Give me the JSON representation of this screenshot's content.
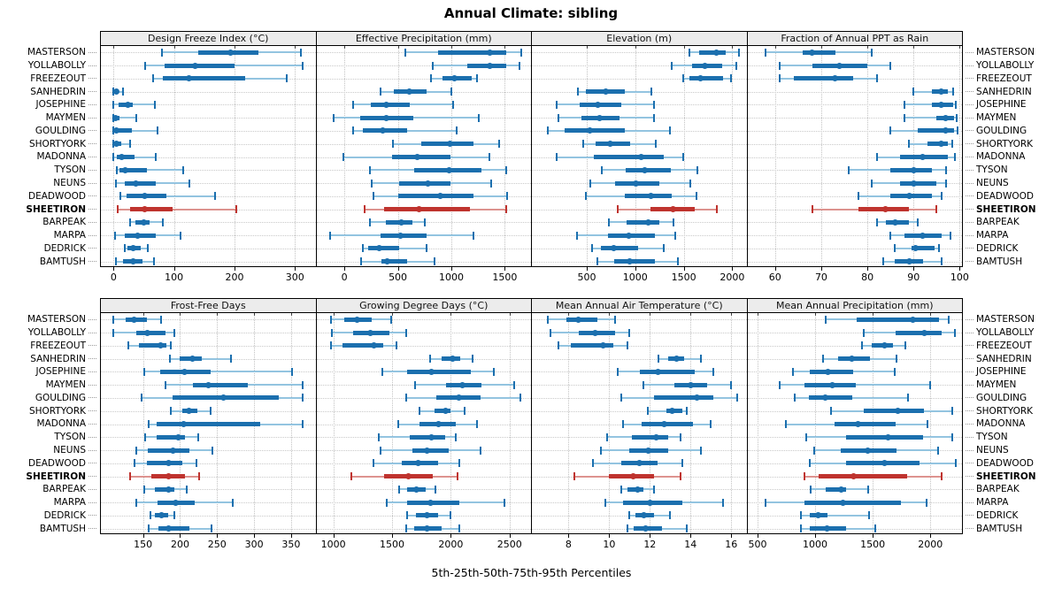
{
  "title": "Annual Climate: sibling",
  "footer": "5th-25th-50th-75th-95th Percentiles",
  "percentile_labels": [
    "5th",
    "25th",
    "50th",
    "75th",
    "95th"
  ],
  "sites": [
    "MASTERSON",
    "YOLLABOLLY",
    "FREEZEOUT",
    "SANHEDRIN",
    "JOSEPHINE",
    "MAYMEN",
    "GOULDING",
    "SHORTYORK",
    "MADONNA",
    "TYSON",
    "NEUNS",
    "DEADWOOD",
    "SHEETIRON",
    "BARPEAK",
    "MARPA",
    "DEDRICK",
    "BAMTUSH"
  ],
  "highlight_site": "SHEETIRON",
  "colors": {
    "blue_main": "#1b6fae",
    "blue_light": "#93c4e0",
    "red_main": "#bf332e",
    "red_light": "#dd938f",
    "header_bg": "#ececec",
    "grid": "#c8c8c8",
    "border": "#000000"
  },
  "chart_data": {
    "type": "dotplot-percentile-intervals",
    "layout": "2 rows x 4 columns of panels, shared site axis",
    "panels": [
      {
        "title": "Design Freeze Index (°C)",
        "ticks": [
          0,
          100,
          200,
          300
        ],
        "range": [
          -21,
          334
        ],
        "values": [
          [
            80,
            140,
            193,
            240,
            310
          ],
          [
            52,
            85,
            135,
            200,
            313
          ],
          [
            65,
            82,
            124,
            217,
            286
          ],
          [
            0,
            1,
            4,
            9,
            15
          ],
          [
            0,
            8,
            24,
            32,
            68
          ],
          [
            0,
            0,
            3,
            10,
            38
          ],
          [
            0,
            1,
            5,
            30,
            72
          ],
          [
            0,
            2,
            5,
            12,
            28
          ],
          [
            0,
            5,
            14,
            35,
            70
          ],
          [
            6,
            10,
            19,
            55,
            115
          ],
          [
            4,
            19,
            37,
            70,
            126
          ],
          [
            11,
            21,
            51,
            87,
            168
          ],
          [
            7,
            27,
            52,
            98,
            203
          ],
          [
            27,
            36,
            50,
            60,
            82
          ],
          [
            2,
            19,
            40,
            70,
            111
          ],
          [
            19,
            23,
            33,
            45,
            57
          ],
          [
            4,
            16,
            33,
            48,
            67
          ]
        ]
      },
      {
        "title": "Effective Precipitation (mm)",
        "ticks": [
          0,
          500,
          1000,
          1500
        ],
        "range": [
          -262,
          1745
        ],
        "values": [
          [
            570,
            880,
            1360,
            1510,
            1650
          ],
          [
            830,
            1150,
            1360,
            1510,
            1640
          ],
          [
            810,
            915,
            1025,
            1190,
            1240
          ],
          [
            335,
            465,
            610,
            765,
            1000
          ],
          [
            85,
            245,
            395,
            615,
            1015
          ],
          [
            -100,
            145,
            395,
            645,
            1255
          ],
          [
            80,
            175,
            355,
            585,
            1050
          ],
          [
            450,
            715,
            985,
            1205,
            1450
          ],
          [
            -10,
            445,
            680,
            990,
            1355
          ],
          [
            235,
            650,
            980,
            1280,
            1510
          ],
          [
            255,
            515,
            780,
            990,
            1370
          ],
          [
            275,
            500,
            900,
            1205,
            1525
          ],
          [
            190,
            370,
            700,
            1170,
            1510
          ],
          [
            240,
            385,
            535,
            640,
            750
          ],
          [
            -135,
            335,
            525,
            765,
            1205
          ],
          [
            175,
            220,
            325,
            510,
            765
          ],
          [
            160,
            345,
            400,
            585,
            845
          ]
        ]
      },
      {
        "title": "Elevation (m)",
        "ticks": [
          500,
          1000,
          1500,
          2000
        ],
        "range": [
          -66,
          2147
        ],
        "values": [
          [
            1555,
            1660,
            1835,
            1935,
            2070
          ],
          [
            1380,
            1585,
            1720,
            1895,
            2045
          ],
          [
            1490,
            1555,
            1670,
            1905,
            1985
          ],
          [
            405,
            495,
            700,
            895,
            1170
          ],
          [
            185,
            425,
            615,
            860,
            1195
          ],
          [
            205,
            445,
            630,
            835,
            1190
          ],
          [
            100,
            275,
            530,
            895,
            1360
          ],
          [
            460,
            595,
            745,
            945,
            1215
          ],
          [
            190,
            575,
            1060,
            1295,
            1490
          ],
          [
            655,
            905,
            1100,
            1365,
            1645
          ],
          [
            540,
            790,
            1010,
            1245,
            1565
          ],
          [
            495,
            895,
            1165,
            1380,
            1635
          ],
          [
            820,
            1155,
            1390,
            1610,
            1845
          ],
          [
            725,
            910,
            1130,
            1245,
            1395
          ],
          [
            395,
            720,
            935,
            1200,
            1415
          ],
          [
            550,
            650,
            775,
            1025,
            1290
          ],
          [
            605,
            780,
            945,
            1205,
            1440
          ]
        ]
      },
      {
        "title": "Fraction of Annual PPT as Rain",
        "ticks": [
          60,
          70,
          80,
          90,
          100
        ],
        "range": [
          54,
          100.5
        ],
        "values": [
          [
            58,
            66,
            68,
            73,
            81
          ],
          [
            61,
            68,
            74,
            80,
            85
          ],
          [
            61,
            64,
            73,
            77,
            82
          ],
          [
            90,
            94,
            96,
            97.5,
            98.5
          ],
          [
            88,
            94,
            96,
            98.5,
            99.2
          ],
          [
            88,
            95,
            97,
            98.8,
            99.4
          ],
          [
            85,
            91,
            97,
            98.8,
            99.5
          ],
          [
            89,
            93,
            96,
            97.5,
            98.3
          ],
          [
            82,
            87,
            92,
            97.5,
            99
          ],
          [
            76,
            85,
            90,
            94,
            97
          ],
          [
            81,
            87,
            90,
            95,
            97
          ],
          [
            78,
            85,
            89,
            94,
            96
          ],
          [
            68,
            78,
            84,
            89,
            95
          ],
          [
            82,
            84,
            86,
            89,
            91
          ],
          [
            85,
            88,
            92,
            96,
            98
          ],
          [
            86,
            89.5,
            90.5,
            94.5,
            95.5
          ],
          [
            83.5,
            86,
            89,
            92,
            96
          ]
        ]
      },
      {
        "title": "Frost-Free Days",
        "ticks": [
          150,
          200,
          250,
          300,
          350
        ],
        "range": [
          93,
          383
        ],
        "values": [
          [
            110,
            127,
            138,
            155,
            174
          ],
          [
            110,
            141,
            156,
            180,
            192
          ],
          [
            130,
            145,
            174,
            181,
            187
          ],
          [
            186,
            200,
            217,
            229,
            269
          ],
          [
            151,
            173,
            206,
            241,
            351
          ],
          [
            180,
            217,
            238,
            291,
            366
          ],
          [
            148,
            190,
            259,
            333,
            366
          ],
          [
            188,
            203,
            212,
            223,
            241
          ],
          [
            157,
            168,
            205,
            308,
            366
          ],
          [
            153,
            168,
            198,
            207,
            225
          ],
          [
            141,
            156,
            191,
            213,
            244
          ],
          [
            138,
            155,
            184,
            203,
            222
          ],
          [
            132,
            161,
            184,
            207,
            226
          ],
          [
            152,
            166,
            184,
            192,
            209
          ],
          [
            141,
            169,
            194,
            220,
            271
          ],
          [
            160,
            166,
            175,
            184,
            192
          ],
          [
            158,
            171,
            184,
            213,
            243
          ]
        ]
      },
      {
        "title": "Growing Degree Days (°C)",
        "ticks": [
          1000,
          1500,
          2000,
          2500
        ],
        "range": [
          856,
          2683
        ],
        "values": [
          [
            980,
            1090,
            1200,
            1330,
            1490
          ],
          [
            985,
            1170,
            1315,
            1475,
            1620
          ],
          [
            980,
            1080,
            1345,
            1425,
            1535
          ],
          [
            1825,
            1920,
            2015,
            2080,
            2185
          ],
          [
            1420,
            1625,
            1835,
            2170,
            2365
          ],
          [
            1695,
            1960,
            2100,
            2260,
            2540
          ],
          [
            1620,
            1875,
            2070,
            2255,
            2590
          ],
          [
            1735,
            1865,
            1955,
            1995,
            2120
          ],
          [
            1550,
            1730,
            1895,
            2045,
            2225
          ],
          [
            1385,
            1650,
            1835,
            1950,
            2045
          ],
          [
            1400,
            1675,
            1800,
            1985,
            2250
          ],
          [
            1345,
            1585,
            1725,
            1890,
            2075
          ],
          [
            1150,
            1430,
            1640,
            1845,
            2060
          ],
          [
            1560,
            1625,
            1705,
            1790,
            1870
          ],
          [
            1455,
            1625,
            1830,
            2070,
            2455
          ],
          [
            1625,
            1705,
            1800,
            1895,
            2000
          ],
          [
            1620,
            1685,
            1795,
            1925,
            2075
          ]
        ]
      },
      {
        "title": "Mean Annual Air Temperature (°C)",
        "ticks": [
          8,
          10,
          12,
          14,
          16
        ],
        "range": [
          6.2,
          16.75
        ],
        "values": [
          [
            7.0,
            7.9,
            8.5,
            9.4,
            10.3
          ],
          [
            7.1,
            8.5,
            9.3,
            10.3,
            11.0
          ],
          [
            7.5,
            8.1,
            9.7,
            10.2,
            10.9
          ],
          [
            12.4,
            12.9,
            13.3,
            13.7,
            14.5
          ],
          [
            10.4,
            11.5,
            12.4,
            14.2,
            15.1
          ],
          [
            11.7,
            13.2,
            14.0,
            14.8,
            16.0
          ],
          [
            10.6,
            12.2,
            14.3,
            15.1,
            16.3
          ],
          [
            11.9,
            12.8,
            13.1,
            13.6,
            13.8
          ],
          [
            10.7,
            11.6,
            12.7,
            14.1,
            15.0
          ],
          [
            9.9,
            11.1,
            12.3,
            12.9,
            13.5
          ],
          [
            9.6,
            11.0,
            11.9,
            12.9,
            14.5
          ],
          [
            9.2,
            10.6,
            11.5,
            12.4,
            13.6
          ],
          [
            8.3,
            10.0,
            11.2,
            12.2,
            13.5
          ],
          [
            10.6,
            10.9,
            11.4,
            11.7,
            12.2
          ],
          [
            9.8,
            10.7,
            12.0,
            13.6,
            15.6
          ],
          [
            11.0,
            11.3,
            11.7,
            12.2,
            13.0
          ],
          [
            10.9,
            11.2,
            11.8,
            12.6,
            13.8
          ]
        ]
      },
      {
        "title": "Mean Annual Precipitation (mm)",
        "ticks": [
          500,
          1000,
          1500,
          2000
        ],
        "range": [
          412,
          2275
        ],
        "values": [
          [
            1095,
            1360,
            1850,
            2075,
            2160
          ],
          [
            1425,
            1695,
            1945,
            2095,
            2215
          ],
          [
            1405,
            1495,
            1605,
            1675,
            1785
          ],
          [
            1070,
            1200,
            1320,
            1475,
            1705
          ],
          [
            810,
            955,
            1110,
            1330,
            1690
          ],
          [
            695,
            905,
            1150,
            1355,
            1995
          ],
          [
            820,
            945,
            1085,
            1325,
            1805
          ],
          [
            1135,
            1425,
            1715,
            1945,
            2190
          ],
          [
            745,
            1165,
            1375,
            1700,
            1975
          ],
          [
            925,
            1265,
            1630,
            1940,
            2190
          ],
          [
            995,
            1220,
            1460,
            1705,
            2070
          ],
          [
            950,
            1265,
            1605,
            1905,
            2225
          ],
          [
            910,
            1030,
            1335,
            1800,
            2100
          ],
          [
            960,
            1090,
            1230,
            1270,
            1460
          ],
          [
            570,
            905,
            1240,
            1745,
            1970
          ],
          [
            875,
            955,
            1030,
            1105,
            1465
          ],
          [
            880,
            950,
            1100,
            1265,
            1520
          ]
        ]
      }
    ]
  }
}
